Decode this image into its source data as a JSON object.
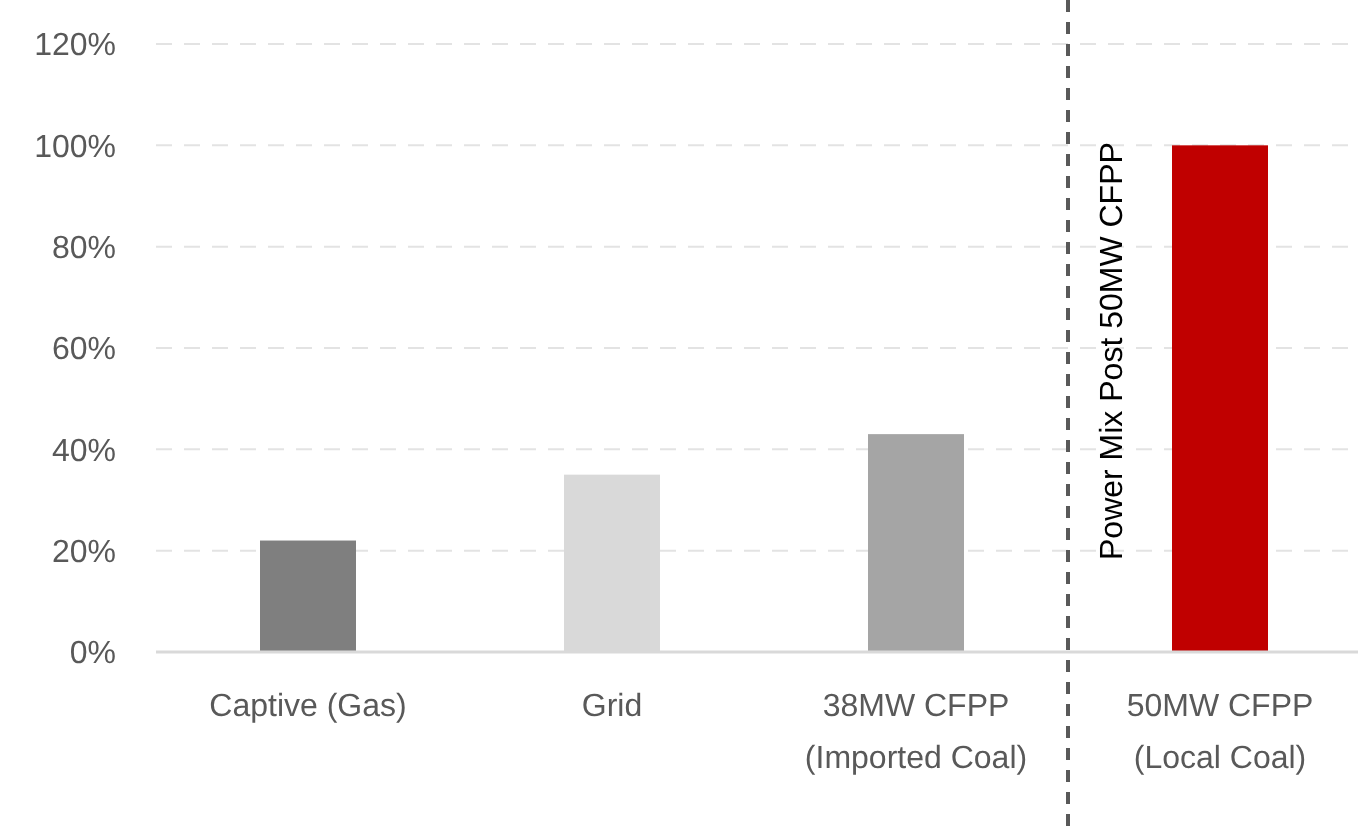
{
  "chart_data": {
    "type": "bar",
    "categories": [
      "Captive (Gas)",
      "Grid",
      "38MW CFPP\n(Imported Coal)",
      "50MW CFPP\n(Local Coal)"
    ],
    "values": [
      22,
      35,
      43,
      100
    ],
    "colors": [
      "#7f7f7f",
      "#d9d9d9",
      "#a5a5a5",
      "#c00000"
    ],
    "ylim": [
      0,
      120
    ],
    "yticks": [
      {
        "value": 0,
        "label": "0%"
      },
      {
        "value": 20,
        "label": "20%"
      },
      {
        "value": 40,
        "label": "40%"
      },
      {
        "value": 60,
        "label": "60%"
      },
      {
        "value": 80,
        "label": "80%"
      },
      {
        "value": 100,
        "label": "100%"
      },
      {
        "value": 120,
        "label": "120%"
      }
    ],
    "grid": "y",
    "annotations": [
      "Power Mix Post 50MW CFPP"
    ]
  }
}
